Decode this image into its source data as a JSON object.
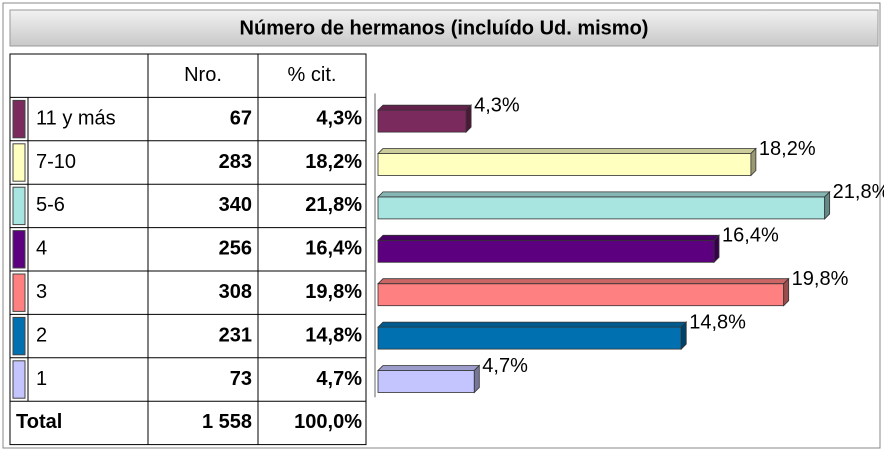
{
  "chart_data": {
    "type": "bar",
    "orientation": "horizontal",
    "title": "Número de hermanos (incluído Ud. mismo)",
    "columns": [
      "Nro.",
      "% cit."
    ],
    "categories": [
      "11 y más",
      "7-10",
      "5-6",
      "4",
      "3",
      "2",
      "1"
    ],
    "counts": [
      67,
      283,
      340,
      256,
      308,
      231,
      73
    ],
    "values": [
      4.3,
      18.2,
      21.8,
      16.4,
      19.8,
      14.8,
      4.7
    ],
    "value_labels": [
      "4,3%",
      "18,2%",
      "21,8%",
      "16,4%",
      "19,8%",
      "14,8%",
      "4,7%"
    ],
    "colors": [
      "#7b2a5e",
      "#ffffc0",
      "#a8e4e0",
      "#5c0080",
      "#ff8080",
      "#0070b0",
      "#c4c4ff"
    ],
    "total_label": "Total",
    "total_count": "1 558",
    "total_pct": "100,0%",
    "xlim": [
      0,
      22.5
    ]
  }
}
